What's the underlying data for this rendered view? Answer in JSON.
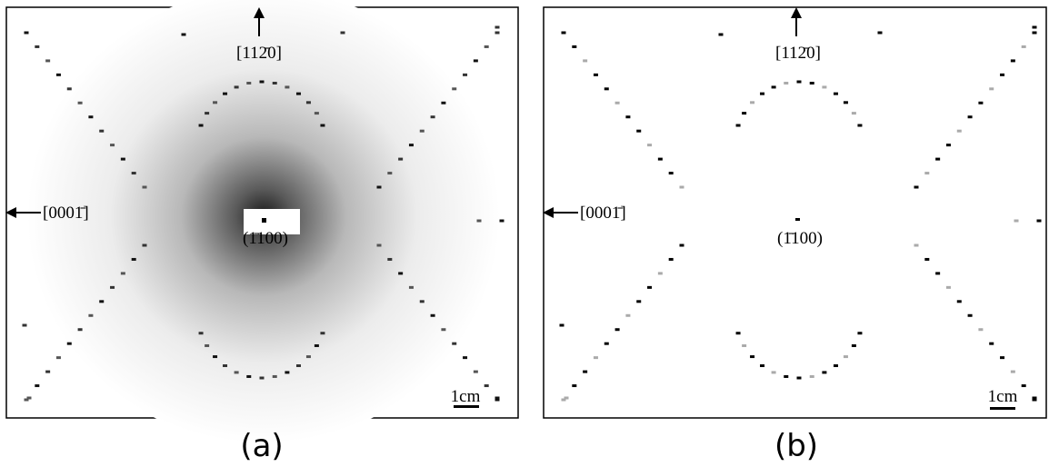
{
  "panels": [
    {
      "label": "(a)",
      "annotations": {
        "top": "[112̄0]",
        "left": "[0001̄]",
        "center": "(1̄100)",
        "scale": "1cm"
      }
    },
    {
      "label": "(b)",
      "annotations": {
        "top": "[112̄0]",
        "left": "[0001̄]",
        "center": "(1̄100)",
        "scale": "1cm"
      }
    }
  ]
}
